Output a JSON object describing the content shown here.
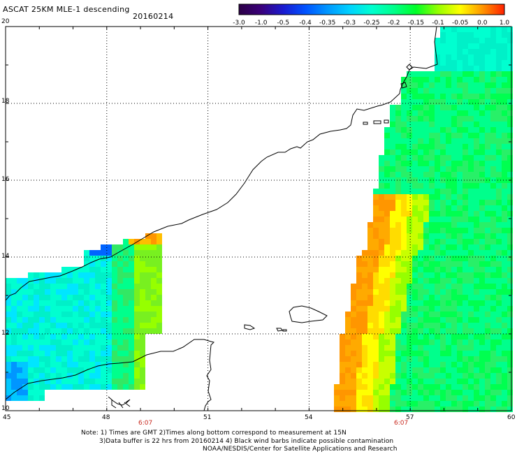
{
  "header": {
    "title": "ASCAT 25KM MLE-1 descending",
    "date": "20160214"
  },
  "colorbar": {
    "ticks": [
      "-3.0",
      "-1.0",
      "-0.5",
      "-0.4",
      "-0.35",
      "-0.3",
      "-0.25",
      "-0.2",
      "-0.15",
      "-0.1",
      "-0.05",
      "0.0",
      "1.0"
    ],
    "colors": [
      "#2b0046",
      "#3a007a",
      "#1a1ad0",
      "#0052ff",
      "#0096ff",
      "#00d2ff",
      "#00ffd0",
      "#00ff8c",
      "#00ff28",
      "#96ff00",
      "#ffff00",
      "#ff9600",
      "#ff2000"
    ]
  },
  "map": {
    "lon_labels": [
      "45",
      "48",
      "51",
      "54",
      "57",
      "60"
    ],
    "lat_labels": [
      "20",
      "18",
      "16",
      "14",
      "12",
      "10"
    ],
    "time_labels": [
      "6:07",
      "6:07"
    ],
    "lon_range": [
      45,
      60
    ],
    "lat_range": [
      10,
      20
    ]
  },
  "footer": {
    "line1": "Note: 1) Times are GMT 2)Times along bottom correspond to measurement at 15N",
    "line2": "3)Data buffer is 22 hrs from 20160214 4) Black wind barbs indicate possible contamination",
    "line3": "NOAA/NESDIS/Center for Satellite Applications and Research"
  }
}
